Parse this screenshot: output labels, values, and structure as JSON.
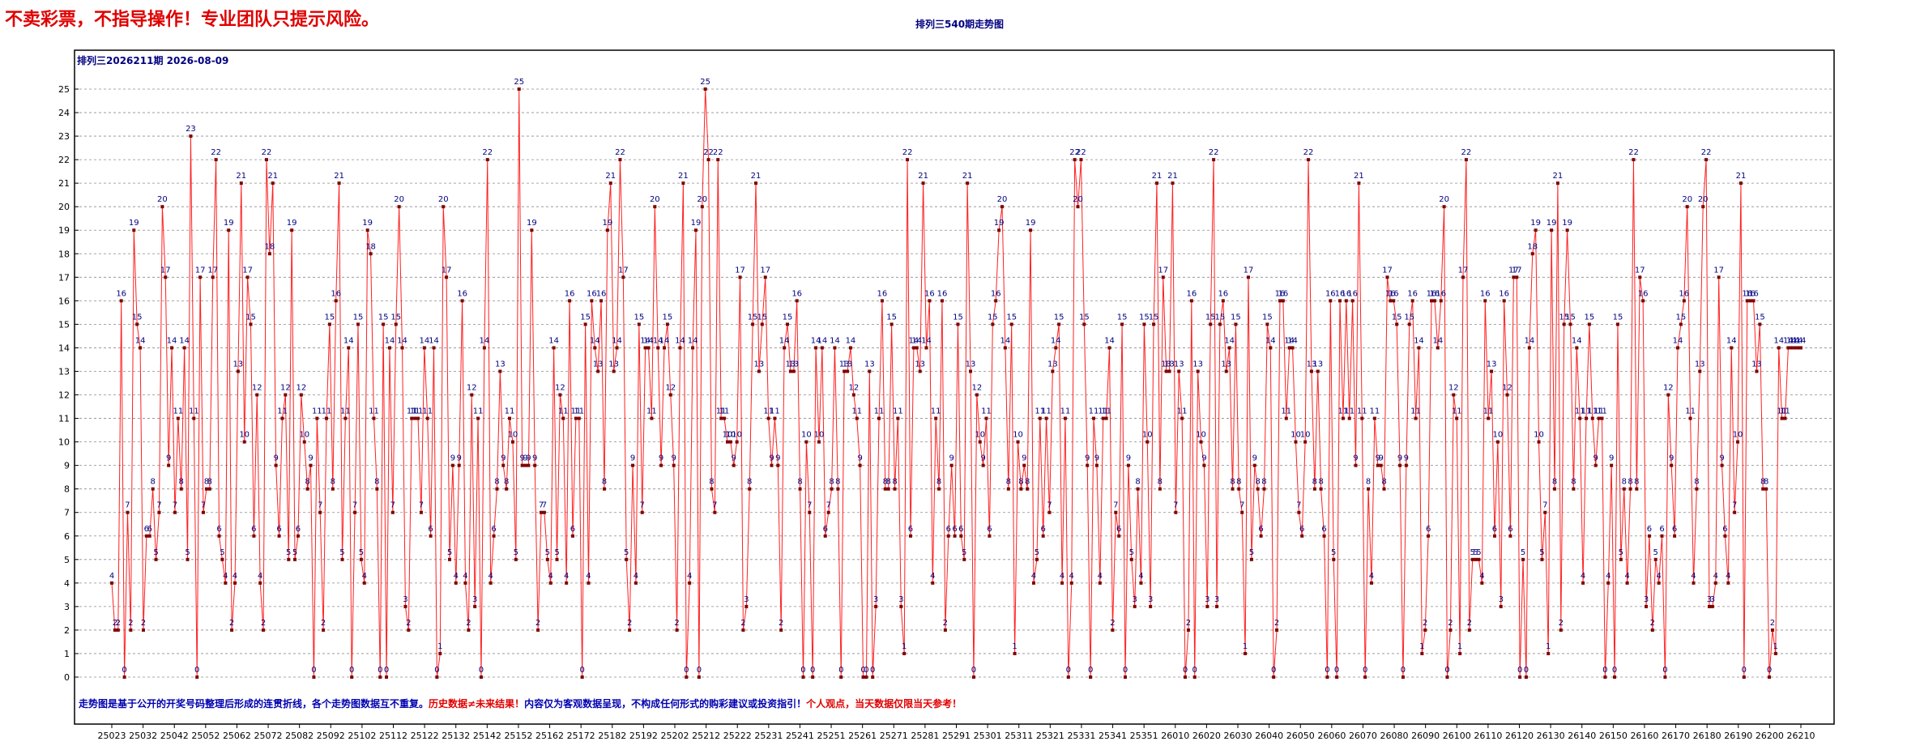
{
  "page": {
    "warning": "不卖彩票，不指导操作！专业团队只提示风险。",
    "title": "排列三540期走势图",
    "plot_heading": "排列三2026211期  2026-08-09",
    "disclaimer": {
      "part1": "走势图是基于公开的开奖号码整理后形成的连贯折线，各个走势图数据互不重复。",
      "part2": "历史数据≠未来结果！",
      "part3": "内容仅为客观数据呈现，不构成任何形式的购彩建议或投资指引！",
      "part4": "个人观点，当天数据仅限当天参考！"
    }
  },
  "colors": {
    "line": "#ff2020",
    "point": "#800000",
    "label": "#000080",
    "grid": "#8c8c8c",
    "axis": "#000000"
  },
  "chart_data": {
    "type": "line",
    "ylim": [
      0,
      25
    ],
    "yticks": [
      "0",
      "1",
      "2",
      "3",
      "4",
      "5",
      "6",
      "7",
      "8",
      "9",
      "10",
      "11",
      "12",
      "13",
      "14",
      "15",
      "16",
      "17",
      "18",
      "19",
      "20",
      "21",
      "22",
      "23",
      "24",
      "25"
    ],
    "xtick_labels": [
      "25023",
      "25032",
      "25042",
      "25052",
      "25062",
      "25072",
      "25082",
      "25092",
      "25102",
      "25112",
      "25122",
      "25132",
      "25142",
      "25152",
      "25162",
      "25172",
      "25182",
      "25192",
      "25202",
      "25212",
      "25222",
      "25231",
      "25241",
      "25251",
      "25261",
      "25271",
      "25281",
      "25291",
      "25301",
      "25311",
      "25321",
      "25331",
      "25341",
      "25351",
      "26010",
      "26020",
      "26030",
      "26040",
      "26050",
      "26060",
      "26070",
      "26080",
      "26090",
      "26100",
      "26110",
      "26120",
      "26130",
      "26140",
      "26150",
      "26160",
      "26170",
      "26180",
      "26190",
      "26200",
      "26210"
    ],
    "grid": true,
    "data_labels": true,
    "values": [
      4,
      2,
      2,
      16,
      0,
      7,
      2,
      19,
      15,
      14,
      2,
      6,
      6,
      8,
      5,
      7,
      20,
      17,
      9,
      14,
      7,
      11,
      8,
      14,
      5,
      23,
      11,
      0,
      17,
      7,
      8,
      8,
      17,
      22,
      6,
      5,
      4,
      19,
      2,
      4,
      13,
      21,
      10,
      17,
      15,
      6,
      12,
      4,
      2,
      22,
      18,
      21,
      9,
      6,
      11,
      12,
      5,
      19,
      5,
      6,
      12,
      10,
      8,
      9,
      0,
      11,
      7,
      2,
      11,
      15,
      8,
      16,
      21,
      5,
      11,
      14,
      0,
      7,
      15,
      5,
      4,
      19,
      18,
      11,
      8,
      0,
      15,
      0,
      14,
      7,
      15,
      20,
      14,
      3,
      2,
      11,
      11,
      11,
      7,
      14,
      11,
      6,
      14,
      0,
      1,
      20,
      17,
      5,
      9,
      4,
      9,
      16,
      4,
      2,
      12,
      3,
      11,
      0,
      14,
      22,
      4,
      6,
      8,
      13,
      9,
      8,
      11,
      10,
      5,
      25,
      9,
      9,
      9,
      19,
      9,
      2,
      7,
      7,
      5,
      4,
      14,
      5,
      12,
      11,
      4,
      16,
      6,
      11,
      11,
      0,
      15,
      4,
      16,
      14,
      13,
      16,
      8,
      19,
      21,
      13,
      14,
      22,
      17,
      5,
      2,
      9,
      4,
      15,
      7,
      14,
      14,
      11,
      20,
      14,
      9,
      14,
      15,
      12,
      9,
      2,
      14,
      21,
      0,
      4,
      14,
      19,
      0,
      20,
      25,
      22,
      8,
      7,
      22,
      11,
      11,
      10,
      10,
      9,
      10,
      17,
      2,
      3,
      8,
      15,
      21,
      13,
      15,
      17,
      11,
      9,
      11,
      9,
      2,
      14,
      15,
      13,
      13,
      16,
      8,
      0,
      10,
      7,
      0,
      14,
      10,
      14,
      6,
      7,
      8,
      14,
      8,
      0,
      13,
      13,
      14,
      12,
      11,
      9,
      0,
      0,
      13,
      0,
      3,
      11,
      16,
      8,
      8,
      15,
      8,
      11,
      3,
      1,
      22,
      6,
      14,
      14,
      13,
      21,
      14,
      16,
      4,
      11,
      8,
      16,
      2,
      6,
      9,
      6,
      15,
      6,
      5,
      21,
      13,
      0,
      12,
      10,
      9,
      11,
      6,
      15,
      16,
      19,
      20,
      14,
      8,
      15,
      1,
      10,
      8,
      9,
      8,
      19,
      4,
      5,
      11,
      6,
      11,
      7,
      13,
      14,
      15,
      4,
      11,
      0,
      4,
      22,
      20,
      22,
      15,
      9,
      0,
      11,
      9,
      4,
      11,
      11,
      14,
      2,
      7,
      6,
      15,
      0,
      9,
      5,
      3,
      8,
      4,
      15,
      10,
      3,
      15,
      21,
      8,
      17,
      13,
      13,
      21,
      7,
      13,
      11,
      0,
      2,
      16,
      0,
      13,
      10,
      9,
      3,
      15,
      22,
      3,
      15,
      16,
      13,
      14,
      8,
      15,
      8,
      7,
      1,
      17,
      5,
      9,
      8,
      6,
      8,
      15,
      14,
      0,
      2,
      16,
      16,
      11,
      14,
      14,
      10,
      7,
      6,
      10,
      22,
      13,
      8,
      13,
      8,
      6,
      0,
      16,
      5,
      0,
      16,
      11,
      16,
      11,
      16,
      9,
      21,
      11,
      0,
      8,
      4,
      11,
      9,
      9,
      8,
      17,
      16,
      16,
      15,
      9,
      0,
      9,
      15,
      16,
      11,
      14,
      1,
      2,
      6,
      16,
      16,
      14,
      16,
      20,
      0,
      2,
      12,
      11,
      1,
      17,
      22,
      2,
      5,
      5,
      5,
      4,
      16,
      11,
      13,
      6,
      10,
      3,
      16,
      12,
      6,
      17,
      17,
      0,
      5,
      0,
      14,
      18,
      19,
      10,
      5,
      7,
      1,
      19,
      8,
      21,
      2,
      15,
      19,
      15,
      8,
      14,
      11,
      4,
      11,
      15,
      11,
      9,
      11,
      11,
      0,
      4,
      9,
      0,
      15,
      5,
      8,
      4,
      8,
      22,
      8,
      17,
      16,
      3,
      6,
      2,
      5,
      4,
      6,
      0,
      12,
      9,
      6,
      14,
      15,
      16,
      20,
      11,
      4,
      8,
      13,
      20,
      22,
      3,
      3,
      4,
      17,
      9,
      6,
      4,
      14,
      7,
      10,
      21,
      0,
      16,
      16,
      16,
      13,
      15,
      8,
      8,
      0,
      2,
      1,
      14,
      11,
      11,
      14,
      14,
      14,
      14,
      14
    ]
  }
}
